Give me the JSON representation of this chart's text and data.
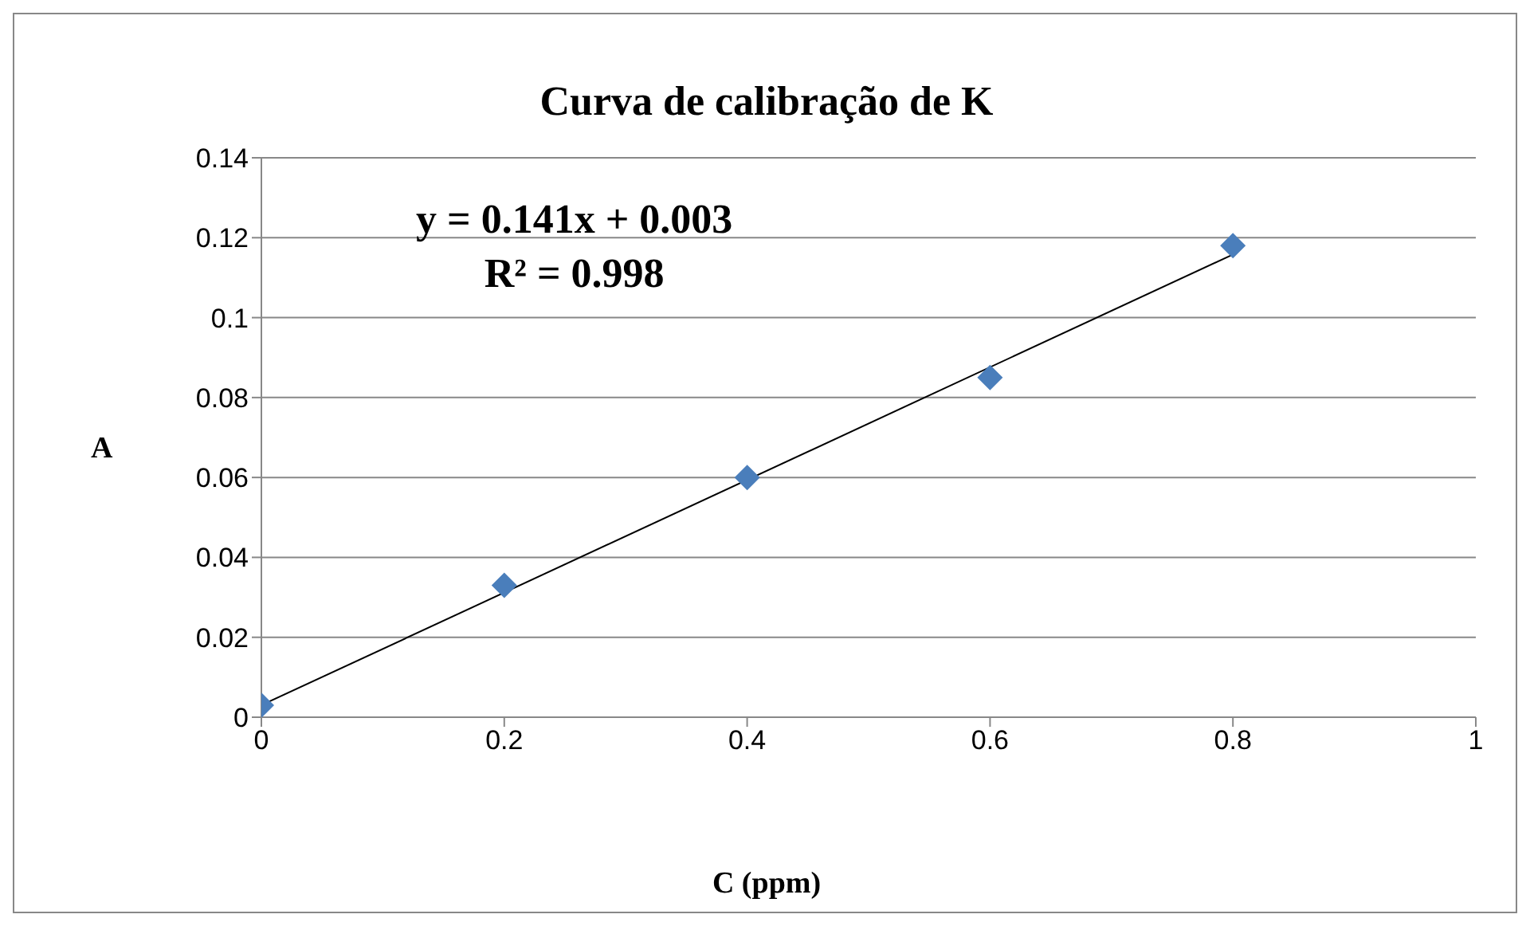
{
  "chart_data": {
    "type": "scatter",
    "title": "Curva de calibração de K",
    "xlabel": "C (ppm)",
    "ylabel": "A",
    "x": [
      0,
      0.2,
      0.4,
      0.6,
      0.8
    ],
    "series": [
      {
        "color": "#4a7ebb",
        "marker": "diamond",
        "values": [
          0.003,
          0.033,
          0.06,
          0.085,
          0.118
        ]
      },
      {
        "type": "line",
        "color": "#000000",
        "marker": "none",
        "x": [
          0,
          0.8
        ],
        "values": [
          0.003,
          0.1158
        ]
      }
    ],
    "xlim": [
      0,
      1
    ],
    "xticks": [
      0,
      0.2,
      0.4,
      0.6,
      0.8,
      1
    ],
    "ylim": [
      0,
      0.14
    ],
    "yticks": [
      0,
      0.02,
      0.04,
      0.06,
      0.08,
      0.1,
      0.12,
      0.14
    ],
    "grid": "y",
    "annotations": [
      "y = 0.141x + 0.003",
      "R² = 0.998"
    ]
  }
}
